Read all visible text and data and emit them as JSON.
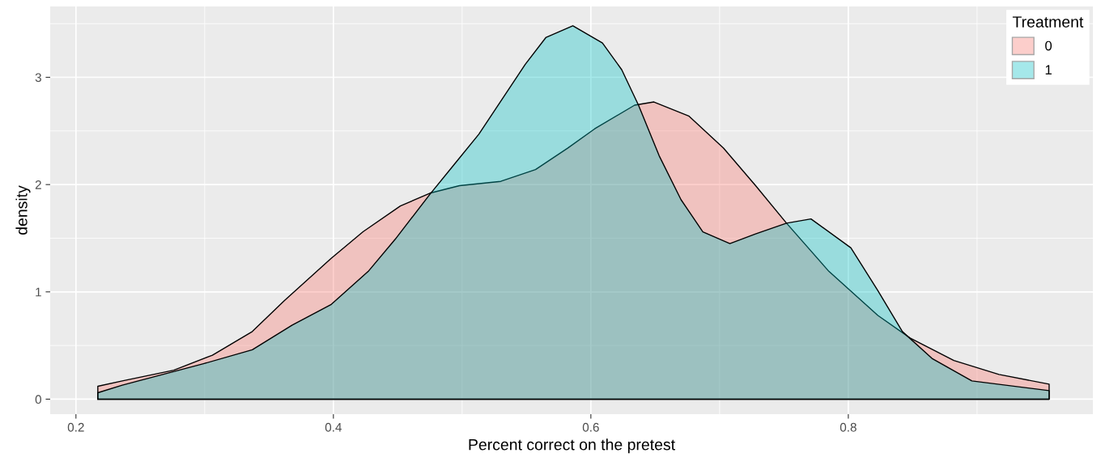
{
  "chart_data": {
    "type": "area",
    "xlabel": "Percent correct on the pretest",
    "ylabel": "density",
    "legend_title": "Treatment",
    "legend": "top right",
    "grid": true,
    "xlim": [
      0.18,
      0.99
    ],
    "ylim": [
      -0.14,
      3.66
    ],
    "xticks": [
      0.2,
      0.4,
      0.6,
      0.8
    ],
    "yticks": [
      0,
      1,
      2,
      3
    ],
    "series": [
      {
        "name": "0",
        "color": "#f8766d",
        "x": [
          0.217,
          0.236,
          0.276,
          0.306,
          0.337,
          0.362,
          0.398,
          0.423,
          0.452,
          0.475,
          0.498,
          0.53,
          0.557,
          0.582,
          0.603,
          0.634,
          0.649,
          0.676,
          0.703,
          0.728,
          0.752,
          0.785,
          0.823,
          0.848,
          0.882,
          0.917,
          0.956
        ],
        "values": [
          0.12,
          0.17,
          0.27,
          0.41,
          0.63,
          0.92,
          1.31,
          1.56,
          1.8,
          1.92,
          1.99,
          2.03,
          2.14,
          2.34,
          2.52,
          2.74,
          2.77,
          2.64,
          2.34,
          1.99,
          1.64,
          1.19,
          0.78,
          0.57,
          0.36,
          0.23,
          0.14
        ]
      },
      {
        "name": "1",
        "color": "#00bfc4",
        "x": [
          0.217,
          0.236,
          0.299,
          0.337,
          0.368,
          0.398,
          0.427,
          0.448,
          0.475,
          0.494,
          0.513,
          0.549,
          0.565,
          0.586,
          0.609,
          0.624,
          0.637,
          0.653,
          0.67,
          0.687,
          0.708,
          0.728,
          0.752,
          0.771,
          0.802,
          0.823,
          0.842,
          0.865,
          0.896,
          0.956
        ],
        "values": [
          0.06,
          0.13,
          0.33,
          0.46,
          0.69,
          0.88,
          1.19,
          1.49,
          1.91,
          2.19,
          2.47,
          3.12,
          3.37,
          3.48,
          3.32,
          3.07,
          2.74,
          2.27,
          1.86,
          1.56,
          1.45,
          1.54,
          1.64,
          1.68,
          1.41,
          1.01,
          0.63,
          0.38,
          0.17,
          0.08
        ]
      }
    ]
  }
}
